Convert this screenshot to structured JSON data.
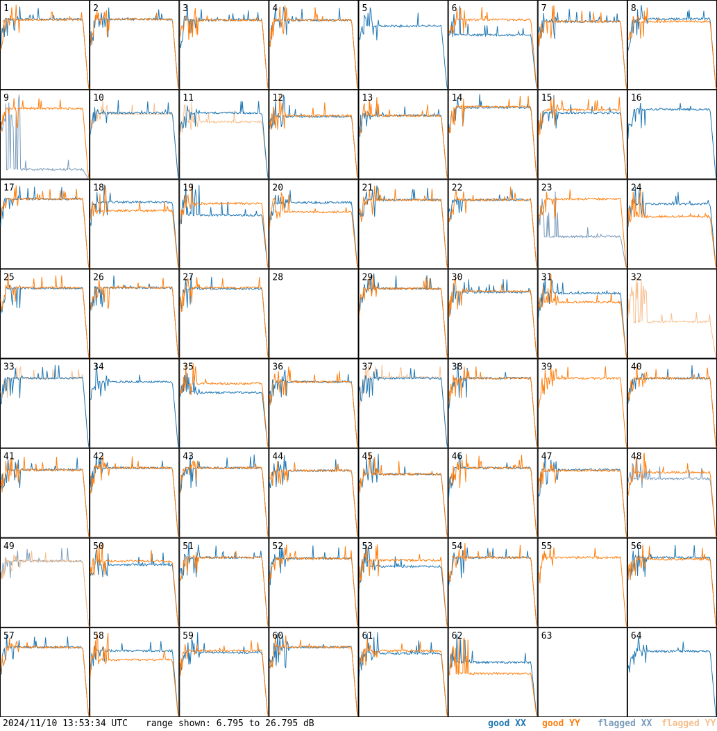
{
  "chart_data": {
    "type": "line",
    "layout": "small-multiples 8x8 grid",
    "panels": [
      "1",
      "2",
      "3",
      "4",
      "5",
      "6",
      "7",
      "8",
      "9",
      "10",
      "11",
      "12",
      "13",
      "14",
      "15",
      "16",
      "17",
      "18",
      "19",
      "20",
      "21",
      "22",
      "23",
      "24",
      "25",
      "26",
      "27",
      "28",
      "29",
      "30",
      "31",
      "32",
      "33",
      "34",
      "35",
      "36",
      "37",
      "38",
      "39",
      "40",
      "41",
      "42",
      "43",
      "44",
      "45",
      "46",
      "47",
      "48",
      "49",
      "50",
      "51",
      "52",
      "53",
      "54",
      "55",
      "56",
      "57",
      "58",
      "59",
      "60",
      "61",
      "62",
      "63",
      "64"
    ],
    "ylim": [
      6.795,
      26.795
    ],
    "yunit": "dB",
    "series": [
      {
        "name": "good XX",
        "color": "#1f77b4"
      },
      {
        "name": "good YY",
        "color": "#ff7f0e"
      },
      {
        "name": "flagged XX",
        "color": "#7a9cbb"
      },
      {
        "name": "flagged YY",
        "color": "#f7bf8e"
      }
    ],
    "panel_levels": {
      "note_units": "dB",
      "xx": [
        22.5,
        22.5,
        22.3,
        22.3,
        21.0,
        19.0,
        22.0,
        22.6,
        0,
        21.6,
        21.6,
        20.8,
        21.0,
        22.8,
        21.6,
        22.4,
        22.4,
        21.7,
        18.8,
        21.6,
        22.2,
        22.2,
        0,
        21.3,
        22.5,
        22.6,
        22.4,
        0,
        22.4,
        21.6,
        21.4,
        0,
        22.4,
        21.6,
        19.2,
        21.6,
        22.4,
        22.4,
        0,
        22.4,
        22.0,
        22.4,
        22.4,
        21.8,
        21.0,
        22.4,
        22.0,
        0,
        0,
        20.8,
        22.4,
        22.2,
        20.4,
        22.4,
        0,
        22.4,
        22.4,
        21.6,
        21.2,
        22.4,
        21.0,
        19.0,
        0,
        21.5
      ],
      "yy": [
        22.4,
        22.5,
        22.3,
        22.3,
        0,
        22.4,
        22.0,
        22.0,
        22.6,
        0,
        0,
        21.0,
        21.0,
        23.0,
        22.3,
        0,
        22.4,
        19.8,
        21.4,
        19.5,
        22.2,
        22.2,
        22.4,
        18.5,
        22.6,
        22.6,
        22.6,
        0,
        22.4,
        21.8,
        19.4,
        0,
        0,
        0,
        21.2,
        21.6,
        0,
        22.4,
        22.4,
        22.4,
        21.9,
        22.4,
        22.4,
        21.8,
        21.0,
        22.4,
        21.8,
        21.4,
        0,
        21.6,
        22.4,
        22.2,
        21.8,
        22.4,
        22.4,
        22.0,
        22.4,
        19.6,
        21.6,
        22.4,
        21.6,
        16.5,
        0,
        0
      ],
      "flagged_xx": [
        0,
        0,
        0,
        0,
        0,
        0,
        0,
        0,
        9.0,
        0,
        0,
        0,
        0,
        0,
        0,
        0,
        0,
        0,
        0,
        0,
        0,
        0,
        14.0,
        0,
        0,
        0,
        0,
        0,
        0,
        0,
        0,
        0,
        0,
        0,
        0,
        0,
        0,
        0,
        0,
        0,
        0,
        0,
        0,
        0,
        0,
        0,
        0,
        20.0,
        21.6,
        0,
        0,
        0,
        0,
        0,
        0,
        0,
        0,
        0,
        0,
        0,
        0,
        0,
        0,
        0
      ],
      "flagged_yy": [
        0,
        0,
        0,
        0,
        0,
        0,
        0,
        0,
        0,
        21.4,
        19.6,
        0,
        0,
        0,
        0,
        0,
        0,
        0,
        0,
        0,
        0,
        0,
        0,
        0,
        0,
        0,
        0,
        0,
        0,
        0,
        0,
        15.0,
        22.4,
        0,
        0,
        0,
        22.6,
        0,
        0,
        0,
        0,
        0,
        0,
        0,
        0,
        0,
        0,
        0,
        21.6,
        0,
        0,
        0,
        0,
        0,
        0,
        0,
        0,
        0,
        0,
        0,
        0,
        0,
        0,
        0
      ]
    }
  },
  "footer": {
    "timestamp": "2024/11/10 13:53:34 UTC",
    "range": "range shown: 6.795 to 26.795 dB",
    "legend_good_xx": "good XX",
    "legend_good_yy": "good YY",
    "legend_flagged_xx": "flagged XX",
    "legend_flagged_yy": "flagged YY"
  }
}
